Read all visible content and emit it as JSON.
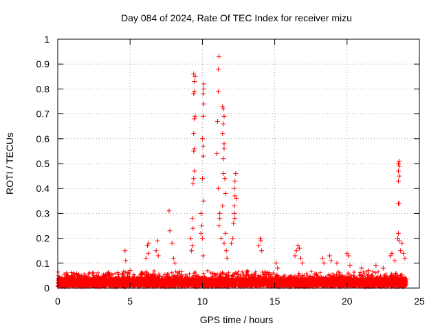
{
  "chart_data": {
    "type": "scatter",
    "title": "Day 084 of 2024, Rate Of TEC Index for receiver mizu",
    "xlabel": "GPS time / hours",
    "ylabel": "ROTI / TECUs",
    "xlim": [
      0,
      25
    ],
    "ylim": [
      0,
      1
    ],
    "xticks": [
      0,
      5,
      10,
      15,
      20,
      25
    ],
    "xtick_labels": [
      "0",
      "5",
      "10",
      "15",
      "20",
      "25"
    ],
    "yticks": [
      0,
      0.1,
      0.2,
      0.3,
      0.4,
      0.5,
      0.6,
      0.7,
      0.8,
      0.9,
      1
    ],
    "ytick_labels": [
      "0",
      "0.1",
      "0.2",
      "0.3",
      "0.4",
      "0.5",
      "0.6",
      "0.7",
      "0.8",
      "0.9",
      "1"
    ],
    "grid": true,
    "marker": "+",
    "marker_color": "#ff0000",
    "series": [
      {
        "name": "ROTI",
        "points": [
          [
            4.65,
            0.15
          ],
          [
            4.7,
            0.11
          ],
          [
            4.8,
            0.06
          ],
          [
            5.0,
            0.07
          ],
          [
            6.1,
            0.12
          ],
          [
            6.2,
            0.17
          ],
          [
            6.3,
            0.18
          ],
          [
            6.25,
            0.14
          ],
          [
            6.8,
            0.15
          ],
          [
            6.9,
            0.19
          ],
          [
            6.95,
            0.13
          ],
          [
            7.7,
            0.31
          ],
          [
            7.75,
            0.23
          ],
          [
            7.9,
            0.18
          ],
          [
            8.0,
            0.12
          ],
          [
            8.1,
            0.1
          ],
          [
            9.2,
            0.2
          ],
          [
            9.3,
            0.28
          ],
          [
            9.35,
            0.42
          ],
          [
            9.4,
            0.44
          ],
          [
            9.45,
            0.47
          ],
          [
            9.4,
            0.55
          ],
          [
            9.45,
            0.56
          ],
          [
            9.4,
            0.62
          ],
          [
            9.45,
            0.68
          ],
          [
            9.5,
            0.69
          ],
          [
            9.4,
            0.78
          ],
          [
            9.45,
            0.79
          ],
          [
            9.45,
            0.83
          ],
          [
            9.5,
            0.85
          ],
          [
            9.4,
            0.86
          ],
          [
            9.35,
            0.24
          ],
          [
            9.3,
            0.17
          ],
          [
            9.25,
            0.15
          ],
          [
            9.9,
            0.3
          ],
          [
            9.95,
            0.25
          ],
          [
            10.0,
            0.44
          ],
          [
            10.05,
            0.53
          ],
          [
            10.05,
            0.57
          ],
          [
            10.0,
            0.6
          ],
          [
            10.05,
            0.69
          ],
          [
            10.1,
            0.74
          ],
          [
            10.05,
            0.78
          ],
          [
            10.1,
            0.8
          ],
          [
            10.1,
            0.82
          ],
          [
            10.0,
            0.2
          ],
          [
            9.9,
            0.22
          ],
          [
            10.1,
            0.35
          ],
          [
            10.05,
            0.13
          ],
          [
            11.0,
            0.54
          ],
          [
            11.05,
            0.67
          ],
          [
            11.1,
            0.79
          ],
          [
            11.1,
            0.88
          ],
          [
            11.15,
            0.93
          ],
          [
            11.1,
            0.4
          ],
          [
            11.2,
            0.3
          ],
          [
            11.15,
            0.25
          ],
          [
            11.2,
            0.28
          ],
          [
            11.3,
            0.2
          ],
          [
            11.4,
            0.33
          ],
          [
            11.45,
            0.46
          ],
          [
            11.45,
            0.52
          ],
          [
            11.5,
            0.56
          ],
          [
            11.5,
            0.58
          ],
          [
            11.4,
            0.62
          ],
          [
            11.45,
            0.66
          ],
          [
            11.5,
            0.69
          ],
          [
            11.4,
            0.73
          ],
          [
            11.45,
            0.72
          ],
          [
            11.55,
            0.44
          ],
          [
            11.6,
            0.38
          ],
          [
            11.6,
            0.22
          ],
          [
            11.5,
            0.18
          ],
          [
            11.65,
            0.15
          ],
          [
            11.7,
            0.12
          ],
          [
            12.0,
            0.18
          ],
          [
            12.1,
            0.2
          ],
          [
            12.15,
            0.26
          ],
          [
            12.2,
            0.3
          ],
          [
            12.2,
            0.33
          ],
          [
            12.25,
            0.37
          ],
          [
            12.2,
            0.4
          ],
          [
            12.25,
            0.43
          ],
          [
            12.3,
            0.46
          ],
          [
            12.25,
            0.28
          ],
          [
            12.35,
            0.36
          ],
          [
            13.9,
            0.17
          ],
          [
            14.0,
            0.2
          ],
          [
            14.05,
            0.19
          ],
          [
            14.1,
            0.15
          ],
          [
            15.1,
            0.1
          ],
          [
            15.2,
            0.08
          ],
          [
            16.4,
            0.13
          ],
          [
            16.5,
            0.15
          ],
          [
            16.6,
            0.17
          ],
          [
            16.7,
            0.16
          ],
          [
            16.8,
            0.12
          ],
          [
            16.9,
            0.1
          ],
          [
            18.3,
            0.12
          ],
          [
            18.4,
            0.1
          ],
          [
            18.8,
            0.13
          ],
          [
            18.9,
            0.11
          ],
          [
            19.3,
            0.1
          ],
          [
            20.0,
            0.14
          ],
          [
            20.1,
            0.13
          ],
          [
            20.2,
            0.09
          ],
          [
            21.0,
            0.08
          ],
          [
            21.5,
            0.07
          ],
          [
            22.0,
            0.09
          ],
          [
            22.5,
            0.08
          ],
          [
            23.0,
            0.13
          ],
          [
            23.1,
            0.14
          ],
          [
            23.3,
            0.11
          ],
          [
            23.5,
            0.2
          ],
          [
            23.55,
            0.22
          ],
          [
            23.6,
            0.19
          ],
          [
            23.7,
            0.15
          ],
          [
            23.8,
            0.18
          ],
          [
            23.9,
            0.14
          ],
          [
            24.0,
            0.12
          ],
          [
            23.55,
            0.34
          ],
          [
            23.6,
            0.34
          ],
          [
            23.55,
            0.43
          ],
          [
            23.6,
            0.45
          ],
          [
            23.55,
            0.47
          ],
          [
            23.6,
            0.49
          ],
          [
            23.55,
            0.5
          ],
          [
            23.6,
            0.51
          ]
        ]
      }
    ]
  }
}
